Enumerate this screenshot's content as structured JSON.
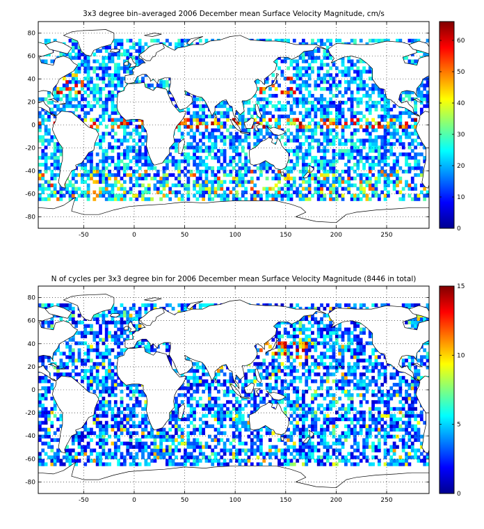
{
  "chart_data": [
    {
      "type": "heatmap",
      "title": "3x3 degree bin–averaged 2006 December mean Surface Velocity Magnitude, cm/s",
      "xlabel": "",
      "ylabel": "",
      "xlim": [
        -95,
        292
      ],
      "ylim": [
        -90,
        90
      ],
      "x_ticks": [
        -50,
        0,
        50,
        100,
        150,
        200,
        250
      ],
      "y_ticks": [
        80,
        60,
        40,
        20,
        0,
        -20,
        -40,
        -60,
        -80
      ],
      "grid": true,
      "bin_size_deg": 3,
      "colorbar": {
        "min": 0,
        "max": 66,
        "ticks": [
          0,
          10,
          20,
          30,
          40,
          50,
          60
        ],
        "colormap": "jet",
        "placement": "right"
      },
      "typical_values": {
        "open_ocean_min": 8,
        "open_ocean_max": 30,
        "equatorial_and_western_boundary_max": 66
      }
    },
    {
      "type": "heatmap",
      "title": "N of cycles per 3x3 degree bin for 2006 December mean Surface Velocity Magnitude (8446 in total)",
      "xlabel": "",
      "ylabel": "",
      "xlim": [
        -95,
        292
      ],
      "ylim": [
        -90,
        90
      ],
      "x_ticks": [
        -50,
        0,
        50,
        100,
        150,
        200,
        250
      ],
      "y_ticks": [
        80,
        60,
        40,
        20,
        0,
        -20,
        -40,
        -60,
        -80
      ],
      "grid": true,
      "bin_size_deg": 3,
      "colorbar": {
        "min": 0,
        "max": 15,
        "ticks": [
          0,
          5,
          10,
          15
        ],
        "colormap": "jet",
        "placement": "right"
      },
      "typical_values": {
        "open_ocean_min": 1,
        "open_ocean_max": 6,
        "kuroshio_region_max": 15
      }
    }
  ]
}
